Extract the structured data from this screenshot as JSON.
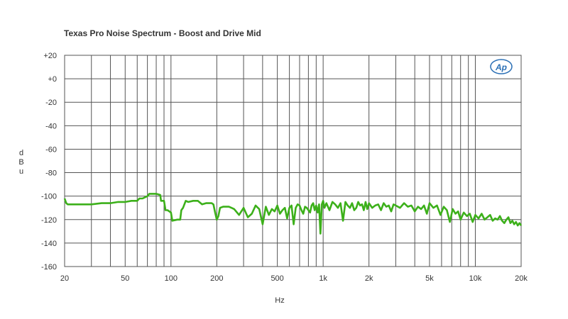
{
  "chart_data": {
    "type": "line",
    "title": "Texas Pro Noise Spectrum - Boost and Drive Mid",
    "xlabel": "Hz",
    "ylabel": "dBu",
    "x_scale": "log",
    "xlim": [
      20,
      20000
    ],
    "ylim": [
      -160,
      20
    ],
    "x_ticks": [
      {
        "value": 20,
        "label": "20"
      },
      {
        "value": 50,
        "label": "50"
      },
      {
        "value": 100,
        "label": "100"
      },
      {
        "value": 200,
        "label": "200"
      },
      {
        "value": 500,
        "label": "500"
      },
      {
        "value": 1000,
        "label": "1k"
      },
      {
        "value": 2000,
        "label": "2k"
      },
      {
        "value": 5000,
        "label": "5k"
      },
      {
        "value": 10000,
        "label": "10k"
      },
      {
        "value": 20000,
        "label": "20k"
      }
    ],
    "y_ticks": [
      {
        "value": 20,
        "label": "+20"
      },
      {
        "value": 0,
        "label": "+0"
      },
      {
        "value": -20,
        "label": "-20"
      },
      {
        "value": -40,
        "label": "-40"
      },
      {
        "value": -60,
        "label": "-60"
      },
      {
        "value": -80,
        "label": "-80"
      },
      {
        "value": -100,
        "label": "-100"
      },
      {
        "value": -120,
        "label": "-120"
      },
      {
        "value": -140,
        "label": "-140"
      },
      {
        "value": -160,
        "label": "-160"
      }
    ],
    "grid": true,
    "logo": "Ap",
    "series": [
      {
        "color": "#3cb01a",
        "x": [
          20,
          20.5,
          21,
          30,
          35,
          36,
          40,
          45,
          50,
          55,
          60,
          62,
          65,
          70,
          72,
          75,
          80,
          85,
          86,
          90,
          92,
          95,
          100,
          102,
          110,
          115,
          117,
          120,
          125,
          130,
          140,
          150,
          160,
          170,
          175,
          180,
          185,
          190,
          195,
          200,
          205,
          210,
          220,
          230,
          240,
          250,
          260,
          280,
          300,
          320,
          340,
          360,
          380,
          400,
          420,
          440,
          460,
          480,
          500,
          520,
          540,
          560,
          580,
          600,
          620,
          640,
          660,
          680,
          700,
          720,
          740,
          760,
          780,
          800,
          820,
          840,
          860,
          880,
          900,
          920,
          940,
          960,
          980,
          1000,
          1020,
          1050,
          1100,
          1150,
          1200,
          1250,
          1300,
          1350,
          1400,
          1450,
          1500,
          1550,
          1600,
          1650,
          1700,
          1750,
          1800,
          1850,
          1900,
          1950,
          2000,
          2100,
          2200,
          2300,
          2400,
          2500,
          2600,
          2700,
          2800,
          2900,
          3000,
          3200,
          3400,
          3600,
          3800,
          4000,
          4200,
          4400,
          4600,
          4800,
          5000,
          5300,
          5600,
          5900,
          6200,
          6500,
          6800,
          7100,
          7400,
          7700,
          8000,
          8400,
          8800,
          9200,
          9600,
          10000,
          10500,
          11000,
          11500,
          12000,
          12500,
          13000,
          13500,
          14000,
          14500,
          15000,
          15500,
          16000,
          16500,
          17000,
          17500,
          18000,
          18500,
          19000,
          19500,
          20000
        ],
        "y": [
          -102,
          -106,
          -107,
          -107,
          -106,
          -106,
          -106,
          -105,
          -105,
          -104,
          -104,
          -102,
          -102,
          -100,
          -98,
          -98,
          -98,
          -99,
          -104,
          -104,
          -112,
          -112,
          -114,
          -121,
          -120,
          -120,
          -112,
          -110,
          -104,
          -105,
          -104,
          -104,
          -107,
          -106,
          -106,
          -106,
          -106,
          -107,
          -114,
          -120,
          -117,
          -110,
          -109,
          -109,
          -109,
          -110,
          -111,
          -116,
          -110,
          -118,
          -115,
          -108,
          -111,
          -124,
          -109,
          -116,
          -111,
          -113,
          -108,
          -115,
          -112,
          -110,
          -119,
          -110,
          -108,
          -124,
          -110,
          -107,
          -108,
          -112,
          -115,
          -109,
          -110,
          -112,
          -114,
          -108,
          -106,
          -112,
          -108,
          -114,
          -107,
          -132,
          -107,
          -104,
          -110,
          -106,
          -112,
          -105,
          -107,
          -110,
          -106,
          -121,
          -105,
          -108,
          -110,
          -106,
          -112,
          -110,
          -105,
          -108,
          -107,
          -112,
          -105,
          -111,
          -106,
          -110,
          -108,
          -107,
          -112,
          -106,
          -109,
          -108,
          -113,
          -107,
          -108,
          -110,
          -106,
          -109,
          -108,
          -113,
          -109,
          -111,
          -108,
          -115,
          -106,
          -110,
          -108,
          -116,
          -109,
          -112,
          -122,
          -111,
          -115,
          -113,
          -120,
          -114,
          -117,
          -115,
          -122,
          -116,
          -119,
          -115,
          -120,
          -118,
          -116,
          -121,
          -119,
          -120,
          -117,
          -121,
          -123,
          -120,
          -118,
          -123,
          -121,
          -124,
          -122,
          -125,
          -123,
          -125
        ]
      }
    ]
  }
}
